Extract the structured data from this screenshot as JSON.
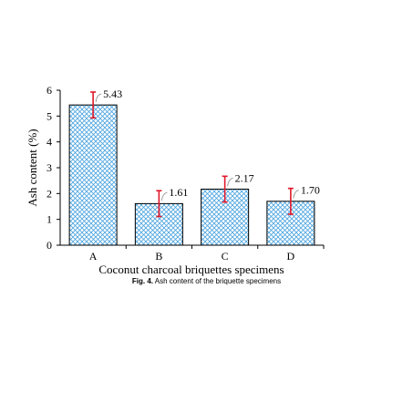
{
  "chart_data": {
    "type": "bar",
    "categories": [
      "A",
      "B",
      "C",
      "D"
    ],
    "values": [
      5.43,
      1.61,
      2.17,
      1.7
    ],
    "errors": [
      0.5,
      0.5,
      0.5,
      0.5
    ],
    "value_labels": [
      "5.43",
      "1.61",
      "2.17",
      "1.70"
    ],
    "xlabel": "Coconut charcoal briquettes specimens",
    "ylabel": "Ash content (%)",
    "ylim": [
      0,
      6
    ],
    "yticks": [
      "0",
      "1",
      "2",
      "3",
      "4",
      "5",
      "6"
    ],
    "grid": false,
    "bar_pattern": "blue crosshatch",
    "colors": {
      "bar_hatch": "#4aa3df",
      "error_bar": "#e0182a",
      "axis": "#000000"
    }
  },
  "caption": {
    "prefix": "Fig. 4.",
    "text": " Ash content of the briquette specimens"
  }
}
